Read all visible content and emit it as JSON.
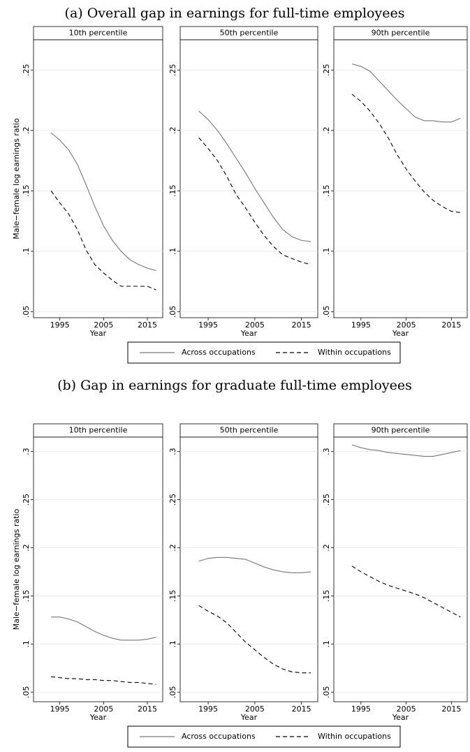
{
  "sections": [
    {
      "title": "(a) Overall gap in earnings for full-time employees",
      "legend": "bottom"
    },
    {
      "title": "(b) Gap in earnings for graduate full-time employees",
      "legend": "bottom"
    }
  ],
  "chart_data": [
    {
      "type": "line",
      "title": "10th percentile",
      "xlabel": "Year",
      "ylabel": "Male−female log earnings ratio",
      "x": [
        1993,
        1995,
        1997,
        1999,
        2001,
        2003,
        2005,
        2007,
        2009,
        2011,
        2013,
        2015,
        2017
      ],
      "xlim": [
        1989,
        2018.5
      ],
      "xticks": [
        1995,
        2005,
        2015
      ],
      "ylim": [
        0.045,
        0.275
      ],
      "yticks": [
        {
          "value": 0.05,
          "label": ".05"
        },
        {
          "value": 0.1,
          "label": ".1"
        },
        {
          "value": 0.15,
          "label": ".15"
        },
        {
          "value": 0.2,
          "label": ".2"
        },
        {
          "value": 0.25,
          "label": ".25"
        }
      ],
      "grid": true,
      "series": [
        {
          "name": "Across occupations",
          "color": "#777777",
          "dash": false,
          "values": [
            0.198,
            0.192,
            0.184,
            0.172,
            0.155,
            0.137,
            0.121,
            0.109,
            0.1,
            0.093,
            0.089,
            0.086,
            0.084
          ]
        },
        {
          "name": "Within occupations",
          "color": "#000000",
          "dash": true,
          "values": [
            0.15,
            0.14,
            0.131,
            0.118,
            0.101,
            0.089,
            0.082,
            0.076,
            0.071,
            0.071,
            0.071,
            0.071,
            0.068
          ]
        }
      ]
    },
    {
      "type": "line",
      "title": "50th percentile",
      "xlabel": "Year",
      "x": [
        1993,
        1995,
        1997,
        1999,
        2001,
        2003,
        2005,
        2007,
        2009,
        2011,
        2013,
        2015,
        2017
      ],
      "xlim": [
        1989,
        2018.5
      ],
      "xticks": [
        1995,
        2005,
        2015
      ],
      "ylim": [
        0.045,
        0.275
      ],
      "yticks": [
        {
          "value": 0.05,
          "label": ".05"
        },
        {
          "value": 0.1,
          "label": ".1"
        },
        {
          "value": 0.15,
          "label": ".15"
        },
        {
          "value": 0.2,
          "label": ".2"
        },
        {
          "value": 0.25,
          "label": ".25"
        }
      ],
      "grid": true,
      "series": [
        {
          "name": "Across occupations",
          "color": "#777777",
          "dash": false,
          "values": [
            0.216,
            0.209,
            0.2,
            0.189,
            0.177,
            0.165,
            0.152,
            0.14,
            0.128,
            0.118,
            0.112,
            0.109,
            0.108
          ]
        },
        {
          "name": "Within occupations",
          "color": "#000000",
          "dash": true,
          "values": [
            0.194,
            0.185,
            0.175,
            0.162,
            0.147,
            0.136,
            0.124,
            0.113,
            0.104,
            0.097,
            0.094,
            0.091,
            0.089
          ]
        }
      ]
    },
    {
      "type": "line",
      "title": "90th percentile",
      "xlabel": "Year",
      "x": [
        1993,
        1995,
        1997,
        1999,
        2001,
        2003,
        2005,
        2007,
        2009,
        2011,
        2013,
        2015,
        2017
      ],
      "xlim": [
        1989,
        2018.5
      ],
      "xticks": [
        1995,
        2005,
        2015
      ],
      "ylim": [
        0.045,
        0.275
      ],
      "yticks": [
        {
          "value": 0.05,
          "label": ".05"
        },
        {
          "value": 0.1,
          "label": ".1"
        },
        {
          "value": 0.15,
          "label": ".15"
        },
        {
          "value": 0.2,
          "label": ".2"
        },
        {
          "value": 0.25,
          "label": ".25"
        }
      ],
      "grid": true,
      "series": [
        {
          "name": "Across occupations",
          "color": "#777777",
          "dash": false,
          "values": [
            0.255,
            0.253,
            0.249,
            0.241,
            0.233,
            0.225,
            0.218,
            0.211,
            0.208,
            0.208,
            0.207,
            0.207,
            0.21
          ]
        },
        {
          "name": "Within occupations",
          "color": "#000000",
          "dash": true,
          "values": [
            0.23,
            0.224,
            0.216,
            0.206,
            0.194,
            0.18,
            0.168,
            0.158,
            0.149,
            0.142,
            0.137,
            0.133,
            0.132
          ]
        }
      ]
    },
    {
      "type": "line",
      "title": "10th percentile",
      "xlabel": "Year",
      "ylabel": "Male−female log earnings ratio",
      "x": [
        1993,
        1995,
        1997,
        1999,
        2001,
        2003,
        2005,
        2007,
        2009,
        2011,
        2013,
        2015,
        2017
      ],
      "xlim": [
        1989,
        2018.5
      ],
      "xticks": [
        1995,
        2005,
        2015
      ],
      "ylim": [
        0.04,
        0.315
      ],
      "yticks": [
        {
          "value": 0.05,
          "label": ".05"
        },
        {
          "value": 0.1,
          "label": ".1"
        },
        {
          "value": 0.15,
          "label": ".15"
        },
        {
          "value": 0.2,
          "label": ".2"
        },
        {
          "value": 0.25,
          "label": ".25"
        },
        {
          "value": 0.3,
          "label": ".3"
        }
      ],
      "grid": true,
      "series": [
        {
          "name": "Across occupations",
          "color": "#777777",
          "dash": false,
          "values": [
            0.128,
            0.128,
            0.126,
            0.123,
            0.118,
            0.113,
            0.109,
            0.106,
            0.104,
            0.104,
            0.104,
            0.105,
            0.107
          ]
        },
        {
          "name": "Within occupations",
          "color": "#000000",
          "dash": true,
          "values": [
            0.066,
            0.065,
            0.064,
            0.064,
            0.063,
            0.063,
            0.062,
            0.062,
            0.061,
            0.06,
            0.06,
            0.059,
            0.058
          ]
        }
      ]
    },
    {
      "type": "line",
      "title": "50th percentile",
      "xlabel": "Year",
      "x": [
        1993,
        1995,
        1997,
        1999,
        2001,
        2003,
        2005,
        2007,
        2009,
        2011,
        2013,
        2015,
        2017
      ],
      "xlim": [
        1989,
        2018.5
      ],
      "xticks": [
        1995,
        2005,
        2015
      ],
      "ylim": [
        0.04,
        0.315
      ],
      "yticks": [
        {
          "value": 0.05,
          "label": ".05"
        },
        {
          "value": 0.1,
          "label": ".1"
        },
        {
          "value": 0.15,
          "label": ".15"
        },
        {
          "value": 0.2,
          "label": ".2"
        },
        {
          "value": 0.25,
          "label": ".25"
        },
        {
          "value": 0.3,
          "label": ".3"
        }
      ],
      "grid": true,
      "series": [
        {
          "name": "Across occupations",
          "color": "#777777",
          "dash": false,
          "values": [
            0.186,
            0.189,
            0.19,
            0.19,
            0.189,
            0.188,
            0.184,
            0.18,
            0.177,
            0.175,
            0.174,
            0.174,
            0.175
          ]
        },
        {
          "name": "Within occupations",
          "color": "#000000",
          "dash": true,
          "values": [
            0.14,
            0.134,
            0.129,
            0.122,
            0.112,
            0.102,
            0.094,
            0.086,
            0.079,
            0.074,
            0.071,
            0.07,
            0.07
          ]
        }
      ]
    },
    {
      "type": "line",
      "title": "90th percentile",
      "xlabel": "Year",
      "x": [
        1993,
        1995,
        1997,
        1999,
        2001,
        2003,
        2005,
        2007,
        2009,
        2011,
        2013,
        2015,
        2017
      ],
      "xlim": [
        1989,
        2018.5
      ],
      "xticks": [
        1995,
        2005,
        2015
      ],
      "ylim": [
        0.04,
        0.315
      ],
      "yticks": [
        {
          "value": 0.05,
          "label": ".05"
        },
        {
          "value": 0.1,
          "label": ".1"
        },
        {
          "value": 0.15,
          "label": ".15"
        },
        {
          "value": 0.2,
          "label": ".2"
        },
        {
          "value": 0.25,
          "label": ".25"
        },
        {
          "value": 0.3,
          "label": ".3"
        }
      ],
      "grid": true,
      "series": [
        {
          "name": "Across occupations",
          "color": "#777777",
          "dash": false,
          "values": [
            0.307,
            0.304,
            0.302,
            0.301,
            0.299,
            0.298,
            0.297,
            0.296,
            0.295,
            0.295,
            0.297,
            0.299,
            0.301
          ]
        },
        {
          "name": "Within occupations",
          "color": "#000000",
          "dash": true,
          "values": [
            0.181,
            0.175,
            0.17,
            0.165,
            0.161,
            0.158,
            0.155,
            0.152,
            0.148,
            0.143,
            0.138,
            0.133,
            0.128
          ]
        }
      ]
    }
  ]
}
